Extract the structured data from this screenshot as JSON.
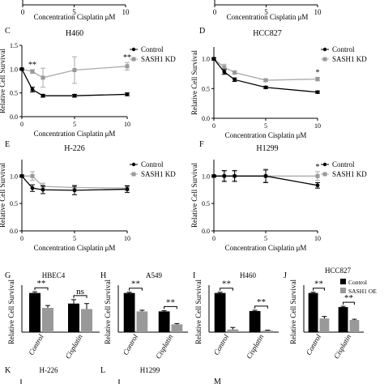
{
  "chart_data": [
    {
      "panel": "",
      "type": "line",
      "title": "",
      "xlabel": "Concentration Cisplatin μM",
      "ylabel": "",
      "x_ticks": [
        "0",
        "5",
        "10"
      ],
      "xlim": [
        0,
        10
      ],
      "series": []
    },
    {
      "panel": "",
      "type": "line",
      "title": "",
      "xlabel": "Concentration Cisplatin μM",
      "ylabel": "",
      "x_ticks": [
        "0",
        "5",
        "10"
      ],
      "xlim": [
        0,
        10
      ],
      "series": []
    },
    {
      "panel": "C",
      "type": "line",
      "title": "H460",
      "xlabel": "Concentration Cisplatin μM",
      "ylabel": "Relative Cell Survival",
      "x_ticks": [
        "0",
        "5",
        "10"
      ],
      "y_ticks": [
        "0.0",
        "0.5",
        "1.0",
        "1.5"
      ],
      "xlim": [
        0,
        10
      ],
      "ylim": [
        0,
        1.5
      ],
      "series": [
        {
          "name": "Control",
          "x": [
            0,
            1,
            2,
            5,
            10
          ],
          "values": [
            1.0,
            0.57,
            0.44,
            0.44,
            0.47
          ],
          "err": [
            0.02,
            0.05,
            0.03,
            0.03,
            0.03
          ]
        },
        {
          "name": "SASH1 KD",
          "x": [
            0,
            1,
            2,
            5,
            10
          ],
          "values": [
            1.0,
            0.95,
            0.82,
            0.98,
            1.06
          ],
          "err": [
            0.02,
            0.04,
            0.2,
            0.28,
            0.08
          ]
        }
      ],
      "annotations": [
        {
          "x": 1,
          "text": "**"
        },
        {
          "x": 10,
          "text": "**"
        }
      ]
    },
    {
      "panel": "D",
      "type": "line",
      "title": "HCC827",
      "xlabel": "Concentration Cisplatin μM",
      "ylabel": "Relative Cell Survival",
      "x_ticks": [
        "0",
        "5",
        "10"
      ],
      "y_ticks": [
        "0.0",
        "0.5",
        "1.0"
      ],
      "xlim": [
        0,
        10
      ],
      "ylim": [
        0,
        1.2
      ],
      "series": [
        {
          "name": "Control",
          "x": [
            0,
            1,
            2,
            5,
            10
          ],
          "values": [
            1.0,
            0.78,
            0.65,
            0.52,
            0.44
          ],
          "err": [
            0.02,
            0.04,
            0.03,
            0.02,
            0.02
          ]
        },
        {
          "name": "SASH1 KD",
          "x": [
            0,
            1,
            2,
            5,
            10
          ],
          "values": [
            1.0,
            0.86,
            0.77,
            0.64,
            0.66
          ],
          "err": [
            0.02,
            0.05,
            0.03,
            0.02,
            0.03
          ]
        }
      ],
      "annotations": [
        {
          "x": 10,
          "text": "*"
        }
      ]
    },
    {
      "panel": "E",
      "type": "line",
      "title": "H-226",
      "xlabel": "Concentration Cisplatin μM",
      "ylabel": "Relative Cell Survival",
      "x_ticks": [
        "0",
        "5",
        "10"
      ],
      "y_ticks": [
        "0.0",
        "0.5",
        "1.0"
      ],
      "xlim": [
        0,
        10
      ],
      "ylim": [
        0,
        1.3
      ],
      "series": [
        {
          "name": "Control",
          "x": [
            0,
            1,
            2,
            5,
            10
          ],
          "values": [
            1.0,
            0.78,
            0.75,
            0.74,
            0.76
          ],
          "err": [
            0.02,
            0.06,
            0.07,
            0.08,
            0.06
          ]
        },
        {
          "name": "SASH1 KD",
          "x": [
            0,
            1,
            2,
            5,
            10
          ],
          "values": [
            1.0,
            1.0,
            0.81,
            0.79,
            0.78
          ],
          "err": [
            0.02,
            0.08,
            0.06,
            0.05,
            0.05
          ]
        }
      ]
    },
    {
      "panel": "F",
      "type": "line",
      "title": "H1299",
      "xlabel": "Concentration Cisplatin μM",
      "ylabel": "Relative Cell Survival",
      "x_ticks": [
        "0",
        "5",
        "10"
      ],
      "y_ticks": [
        "0.0",
        "0.5",
        "1.0"
      ],
      "xlim": [
        0,
        10
      ],
      "ylim": [
        0,
        1.3
      ],
      "series": [
        {
          "name": "Control",
          "x": [
            0,
            1,
            2,
            5,
            10
          ],
          "values": [
            1.0,
            1.0,
            1.0,
            1.0,
            0.83
          ],
          "err": [
            0.02,
            0.1,
            0.1,
            0.12,
            0.05
          ]
        },
        {
          "name": "SASH1 KD",
          "x": [
            0,
            1,
            2,
            5,
            10
          ],
          "values": [
            1.0,
            1.0,
            1.0,
            1.0,
            1.0
          ],
          "err": [
            0.02,
            0.08,
            0.08,
            0.1,
            0.08
          ]
        }
      ],
      "annotations": [
        {
          "x": 10,
          "text": "*"
        }
      ]
    },
    {
      "panel": "G",
      "type": "bar",
      "title": "HBEC4",
      "ylabel": "Relative Cell Survival",
      "categories": [
        "Control",
        "Cisplatin"
      ],
      "ylim": [
        0,
        1.2
      ],
      "series": [
        {
          "name": "Control",
          "values": [
            1.0,
            0.73
          ],
          "err": [
            0.03,
            0.1
          ]
        },
        {
          "name": "SASH1 OE",
          "values": [
            0.62,
            0.59
          ],
          "err": [
            0.06,
            0.14
          ]
        }
      ],
      "annotations": [
        {
          "category": "Control",
          "text": "**"
        },
        {
          "category": "Cisplatin",
          "text": "ns"
        }
      ]
    },
    {
      "panel": "H",
      "type": "bar",
      "title": "A549",
      "ylabel": "Relative Cell Survival",
      "categories": [
        "Control",
        "Cisplatin"
      ],
      "ylim": [
        0,
        1.2
      ],
      "series": [
        {
          "name": "Control",
          "values": [
            1.0,
            0.53
          ],
          "err": [
            0.02,
            0.02
          ]
        },
        {
          "name": "SASH1 OE",
          "values": [
            0.53,
            0.2
          ],
          "err": [
            0.03,
            0.02
          ]
        }
      ],
      "annotations": [
        {
          "category": "Control",
          "text": "**"
        },
        {
          "category": "Cisplatin",
          "text": "**"
        }
      ]
    },
    {
      "panel": "I",
      "type": "bar",
      "title": "H460",
      "ylabel": "Relative Cell Survival",
      "categories": [
        "Control",
        "Cisplatin"
      ],
      "ylim": [
        0,
        1.2
      ],
      "series": [
        {
          "name": "Control",
          "values": [
            1.0,
            0.54
          ],
          "err": [
            0.02,
            0.02
          ]
        },
        {
          "name": "SASH1 OE",
          "values": [
            0.07,
            0.04
          ],
          "err": [
            0.05,
            0.01
          ]
        }
      ],
      "annotations": [
        {
          "category": "Control",
          "text": "**"
        },
        {
          "category": "Cisplatin",
          "text": "**"
        }
      ]
    },
    {
      "panel": "J",
      "type": "bar",
      "title": "HCC827",
      "ylabel": "Relative Cell Survival",
      "categories": [
        "Control",
        "Cisplatin"
      ],
      "ylim": [
        0,
        1.2
      ],
      "legend": "top-right",
      "series": [
        {
          "name": "Control",
          "values": [
            1.0,
            0.64
          ],
          "err": [
            0.02,
            0.02
          ]
        },
        {
          "name": "SASH1 OE",
          "values": [
            0.35,
            0.31
          ],
          "err": [
            0.05,
            0.02
          ]
        }
      ],
      "annotations": [
        {
          "category": "Control",
          "text": "**"
        },
        {
          "category": "Cisplatin",
          "text": "**"
        }
      ]
    },
    {
      "panel": "K",
      "type": "bar",
      "title": "H-226",
      "ylabel": "",
      "categories": [],
      "series": []
    },
    {
      "panel": "L",
      "type": "bar",
      "title": "H1299",
      "ylabel": "",
      "categories": [],
      "series": []
    },
    {
      "panel": "M",
      "type": "bar",
      "title": "",
      "ylabel": "",
      "categories": [],
      "series": []
    }
  ],
  "colors": {
    "control": "#000000",
    "kd": "#999999",
    "kd_line": "#aaaaaa"
  }
}
